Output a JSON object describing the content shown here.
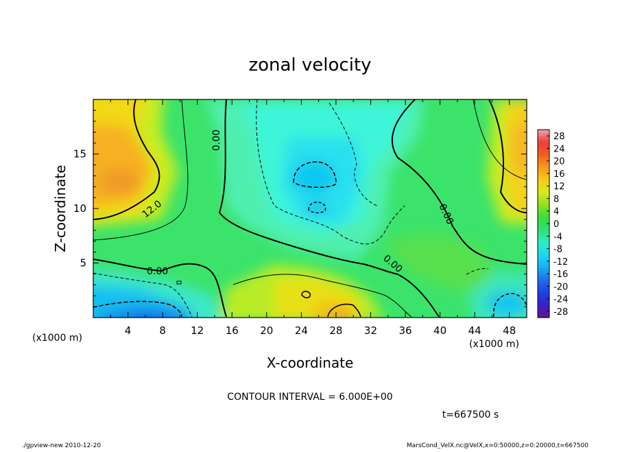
{
  "chart_data": {
    "type": "heatmap",
    "title": "zonal velocity",
    "xlabel": "X-coordinate",
    "ylabel": "Z-coordinate",
    "x_unit": "(x1000 m)",
    "y_unit": "(x1000 m)",
    "xlim": [
      0,
      50
    ],
    "ylim": [
      0,
      20
    ],
    "x_ticks": [
      4,
      8,
      12,
      16,
      20,
      24,
      28,
      32,
      36,
      40,
      44,
      48
    ],
    "y_ticks": [
      5,
      10,
      15
    ],
    "colorbar": {
      "min": -30,
      "max": 30,
      "ticks": [
        28,
        24,
        20,
        16,
        12,
        8,
        4,
        0,
        -4,
        -8,
        -12,
        -16,
        -20,
        -24,
        -28
      ]
    },
    "contour_labels": [
      "0.00",
      "12.0",
      "0.00",
      "0.00",
      "0.00"
    ],
    "contour_interval_text": "CONTOUR INTERVAL = 6.000E+00",
    "time_text": "t=667500 s",
    "footer_left": "./gpview-new  2010-12-20",
    "footer_right": "MarsCond_VelX.nc@VelX,x=0:50000,z=0:20000,t=667500"
  }
}
